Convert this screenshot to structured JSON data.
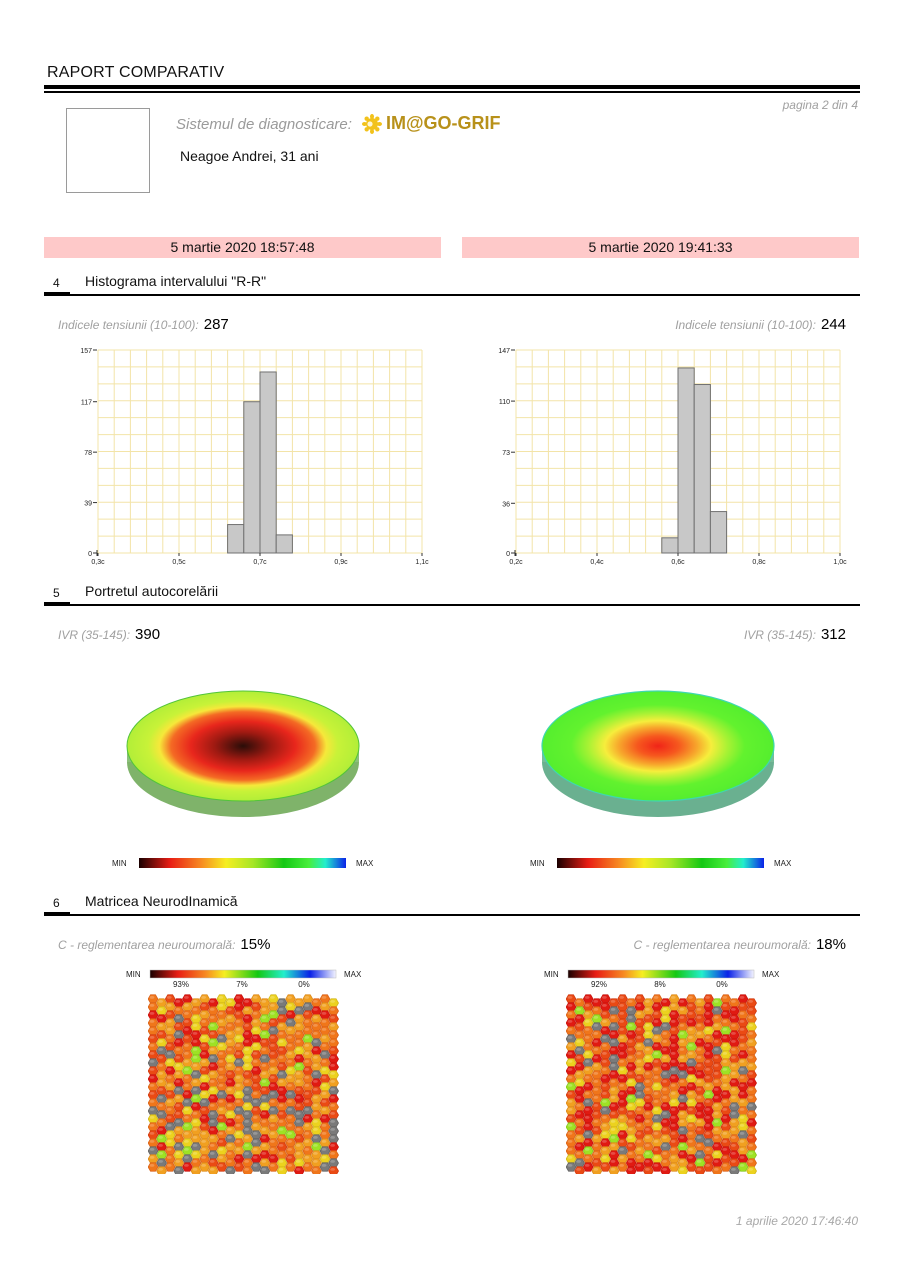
{
  "header": {
    "title": "RAPORT COMPARATIV",
    "page_label": "pagina 2 din 4",
    "system_label": "Sistemul de diagnosticare:",
    "logo_icon": "sun-flower-icon",
    "logo_text": "IM@GO-GRIF",
    "patient": "Neagoe Andrei, 31 ani"
  },
  "sessions": [
    {
      "datetime": "5 martie 2020 18:57:48"
    },
    {
      "datetime": "5 martie 2020 19:41:33"
    }
  ],
  "colors": {
    "session_bar": "#fec9c9",
    "grid_line": "#f3e4a8",
    "bar_fill": "#c8c8c8",
    "bar_stroke": "#707070",
    "logo": "#b8911a",
    "hex_gray": "#707070"
  },
  "sections": {
    "histogram": {
      "number": "4",
      "title": "Histograma intervalului \"R-R\"",
      "left": {
        "label": "Indicele tensiunii (10-100):",
        "value": "287"
      },
      "right": {
        "label": "Indicele tensiunii (10-100):",
        "value": "244"
      }
    },
    "autocorrelation": {
      "number": "5",
      "title": "Portretul autocorelării",
      "left": {
        "label": "IVR (35-145):",
        "value": "390"
      },
      "right": {
        "label": "IVR (35-145):",
        "value": "312"
      },
      "scale_min": "MIN",
      "scale_max": "MAX"
    },
    "matrix": {
      "number": "6",
      "title": "Matricea NeurodInamică",
      "left": {
        "label": "C - reglementarea neuroumorală:",
        "value": "15%",
        "scale_ticks": [
          "93%",
          "7%",
          "0%"
        ]
      },
      "right": {
        "label": "C - reglementarea neuroumorală:",
        "value": "18%",
        "scale_ticks": [
          "92%",
          "8%",
          "0%"
        ]
      },
      "scale_min": "MIN",
      "scale_max": "MAX"
    }
  },
  "chart_data": [
    {
      "type": "bar",
      "title": "Histograma intervalului R-R (5 martie 2020 18:57:48)",
      "xlabel": "",
      "ylabel": "",
      "xlim": [
        0.3,
        1.1
      ],
      "ylim": [
        0,
        157
      ],
      "xticks": [
        0.3,
        0.5,
        0.7,
        0.9,
        1.1
      ],
      "xtick_labels": [
        "0,3c",
        "0,5c",
        "0,7c",
        "0,9c",
        "1,1c"
      ],
      "yticks": [
        0,
        39,
        78,
        117,
        157
      ],
      "ytick_labels": [
        "0",
        "39",
        "78",
        "117",
        "157"
      ],
      "grid": true,
      "grid_cols": 20,
      "grid_rows": 12,
      "bins": [
        {
          "x0": 0.62,
          "x1": 0.66,
          "value": 22
        },
        {
          "x0": 0.66,
          "x1": 0.7,
          "value": 117
        },
        {
          "x0": 0.7,
          "x1": 0.74,
          "value": 140
        },
        {
          "x0": 0.74,
          "x1": 0.78,
          "value": 14
        }
      ]
    },
    {
      "type": "bar",
      "title": "Histograma intervalului R-R (5 martie 2020 19:41:33)",
      "xlabel": "",
      "ylabel": "",
      "xlim": [
        0.2,
        1.0
      ],
      "ylim": [
        0,
        147
      ],
      "xticks": [
        0.2,
        0.4,
        0.6,
        0.8,
        1.0
      ],
      "xtick_labels": [
        "0,2c",
        "0,4c",
        "0,6c",
        "0,8c",
        "1,0c"
      ],
      "yticks": [
        0,
        36,
        73,
        110,
        147
      ],
      "ytick_labels": [
        "0",
        "36",
        "73",
        "110",
        "147"
      ],
      "grid": true,
      "grid_cols": 20,
      "grid_rows": 12,
      "bins": [
        {
          "x0": 0.56,
          "x1": 0.6,
          "value": 11
        },
        {
          "x0": 0.6,
          "x1": 0.64,
          "value": 134
        },
        {
          "x0": 0.64,
          "x1": 0.68,
          "value": 122
        },
        {
          "x0": 0.68,
          "x1": 0.72,
          "value": 30
        }
      ]
    }
  ],
  "footer": {
    "generated": "1 aprilie 2020 17:46:40"
  }
}
